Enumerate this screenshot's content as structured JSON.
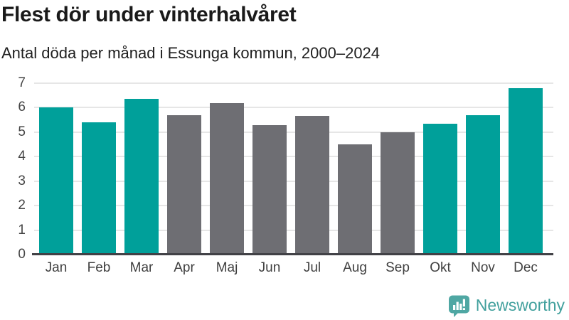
{
  "chart_data": {
    "type": "bar",
    "title": "Flest dör under vinterhalvåret",
    "subtitle": "Antal döda per månad i Essunga kommun, 2000–2024",
    "categories": [
      "Jan",
      "Feb",
      "Mar",
      "Apr",
      "Maj",
      "Jun",
      "Jul",
      "Aug",
      "Sep",
      "Okt",
      "Nov",
      "Dec"
    ],
    "values": [
      6.0,
      5.4,
      6.35,
      5.7,
      6.2,
      5.3,
      5.65,
      4.5,
      5.0,
      5.35,
      5.7,
      6.8
    ],
    "bar_colors": [
      "#00A09A",
      "#00A09A",
      "#00A09A",
      "#6E6E73",
      "#6E6E73",
      "#6E6E73",
      "#6E6E73",
      "#6E6E73",
      "#6E6E73",
      "#00A09A",
      "#00A09A",
      "#00A09A"
    ],
    "xlabel": "",
    "ylabel": "",
    "ylim": [
      0,
      7
    ],
    "yticks": [
      0,
      1,
      2,
      3,
      4,
      5,
      6,
      7
    ],
    "grid": true,
    "legend_position": "none"
  },
  "colors": {
    "accent_teal": "#00A09A",
    "neutral_gray": "#6E6E73",
    "gridline": "#E6E6E6",
    "axis_line": "#414146",
    "tick_label": "#454545",
    "title_text": "#1A1A1A",
    "brand_teal": "#41A09D"
  },
  "footer": {
    "brand": "Newsworthy"
  }
}
